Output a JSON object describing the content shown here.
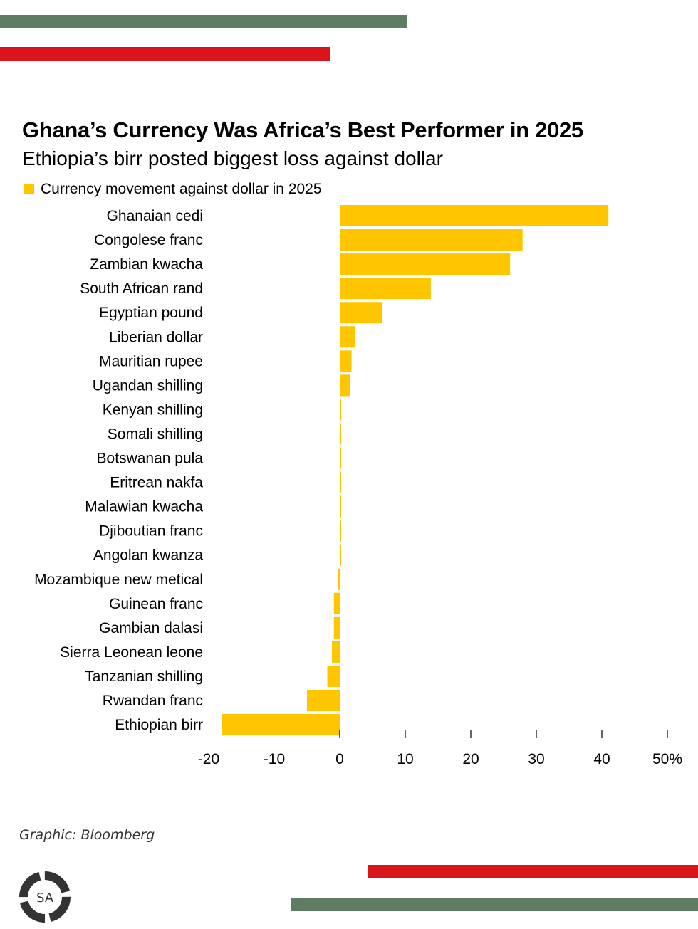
{
  "colors": {
    "green": "#5e7d63",
    "red": "#d9151b",
    "bar": "#ffc600",
    "logo": "#333333"
  },
  "title": "Ghana’s Currency Was Africa’s Best Performer in 2025",
  "subtitle": "Ethiopia’s birr posted biggest loss against dollar",
  "source": "Graphic: Bloomberg",
  "logo_text": "SA",
  "chart_data": {
    "type": "bar",
    "orientation": "horizontal",
    "title": "Ghana’s Currency Was Africa’s Best Performer in 2025",
    "subtitle": "Ethiopia’s birr posted biggest loss against dollar",
    "legend_position": "top-left",
    "series": [
      {
        "name": "Currency movement against dollar in 2025",
        "color": "#ffc600",
        "values": [
          41.0,
          27.9,
          26.0,
          13.9,
          6.5,
          2.4,
          1.8,
          1.6,
          0.2,
          0.2,
          0.2,
          0.2,
          0.1,
          0.1,
          0.05,
          -0.1,
          -0.9,
          -0.9,
          -1.2,
          -1.9,
          -5.0,
          -18.0
        ]
      }
    ],
    "categories": [
      "Ghanaian cedi",
      "Congolese franc",
      "Zambian kwacha",
      "South African rand",
      "Egyptian pound",
      "Liberian dollar",
      "Mauritian rupee",
      "Ugandan shilling",
      "Kenyan shilling",
      "Somali shilling",
      "Botswanan pula",
      "Eritrean nakfa",
      "Malawian kwacha",
      "Djiboutian franc",
      "Angolan kwanza",
      "Mozambique new metical",
      "Guinean franc",
      "Gambian dalasi",
      "Sierra Leonean leone",
      "Tanzanian shilling",
      "Rwandan franc",
      "Ethiopian birr"
    ],
    "xlim": [
      -20,
      50
    ],
    "xticks": [
      -20,
      -10,
      0,
      10,
      20,
      30,
      40,
      50
    ],
    "xtick_labels": [
      "-20",
      "-10",
      "0",
      "10",
      "20",
      "30",
      "40",
      "50%"
    ],
    "grid": false
  }
}
